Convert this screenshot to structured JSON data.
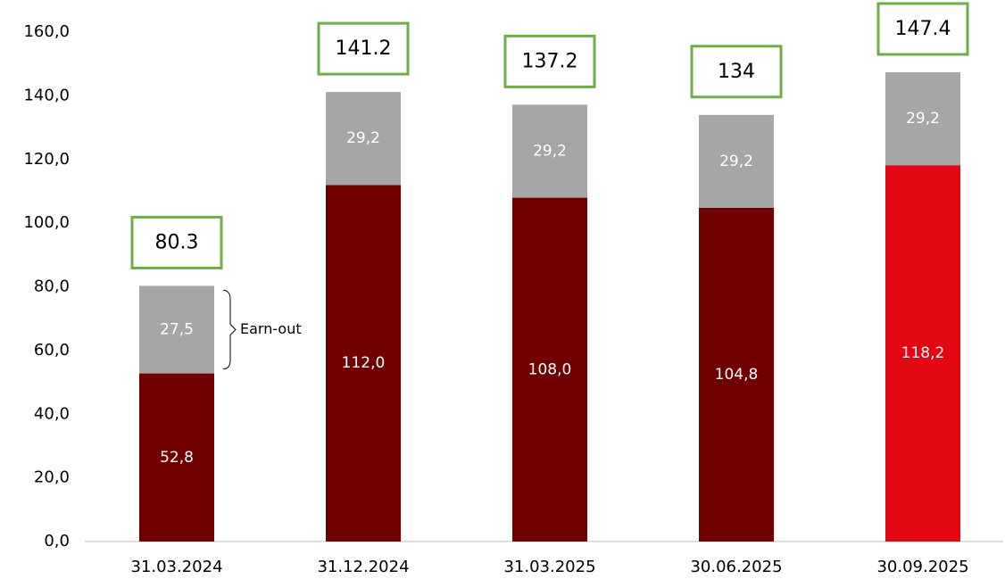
{
  "chart_data": {
    "type": "stacked_bar",
    "categories": [
      "31.03.2024",
      "31.12.2024",
      "31.03.2025",
      "30.06.2025",
      "30.09.2025"
    ],
    "series": [
      {
        "colors": [
          "#700000",
          "#700000",
          "#700000",
          "#700000",
          "#e30613"
        ],
        "values": [
          52.8,
          112.0,
          108.0,
          104.8,
          118.2
        ],
        "value_labels": [
          "52,8",
          "112,0",
          "108,0",
          "104,8",
          "118,2"
        ]
      },
      {
        "color": "#a6a6a6",
        "values": [
          27.5,
          29.2,
          29.2,
          29.2,
          29.2
        ],
        "value_labels": [
          "27,5",
          "29,2",
          "29,2",
          "29,2",
          "29,2"
        ]
      }
    ],
    "totals": [
      80.3,
      141.2,
      137.2,
      134,
      147.4
    ],
    "totals_box_color": "#70ad47",
    "annotation": "Earn-out",
    "ylim": [
      0,
      160
    ],
    "yticks": [
      {
        "value": 0,
        "label": "0,0"
      },
      {
        "value": 20,
        "label": "20,0"
      },
      {
        "value": 40,
        "label": "40,0"
      },
      {
        "value": 60,
        "label": "60,0"
      },
      {
        "value": 80,
        "label": "80,0"
      },
      {
        "value": 100,
        "label": "100,0"
      },
      {
        "value": 120,
        "label": "120,0"
      },
      {
        "value": 140,
        "label": "140,0"
      },
      {
        "value": 160,
        "label": "160,0"
      }
    ]
  }
}
